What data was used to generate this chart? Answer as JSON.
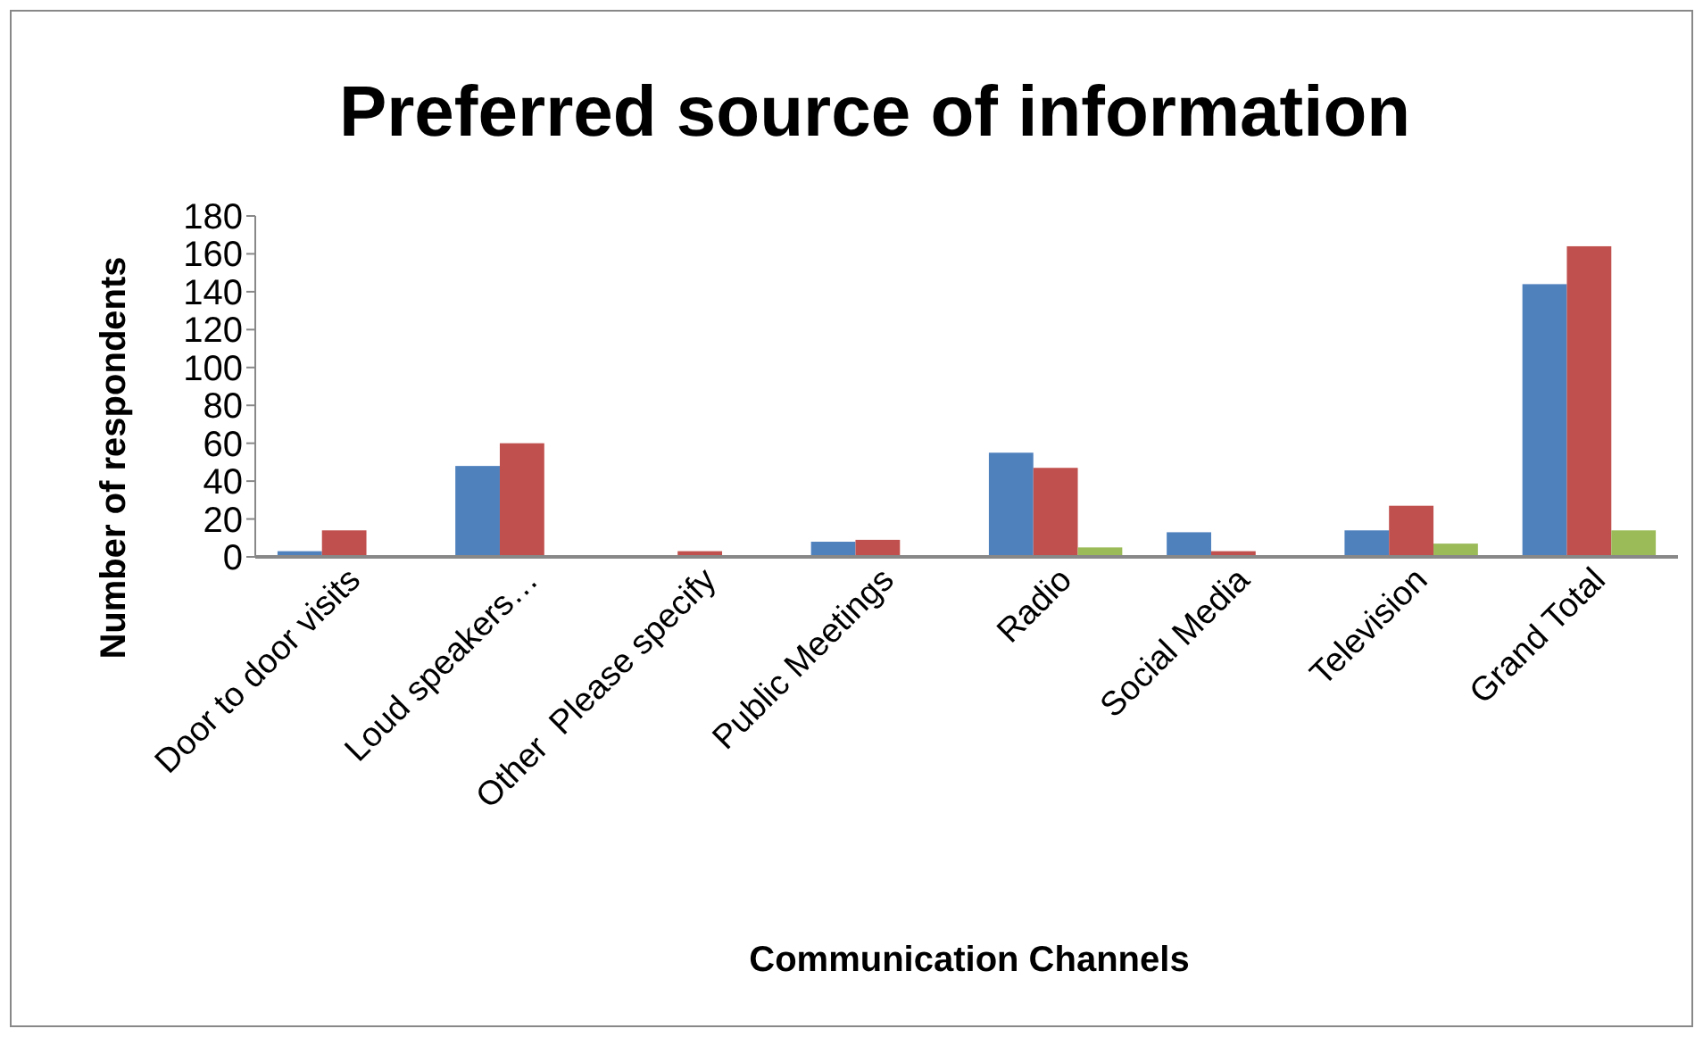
{
  "chart_data": {
    "type": "bar",
    "title": "Preferred source of information",
    "xlabel": "Communication Channels",
    "ylabel": "Number of respondents",
    "categories": [
      "Door to door visits",
      "Loud speakers…",
      "Other  Please specify",
      "Public Meetings",
      "Radio",
      "Social Media",
      "Television",
      "Grand Total"
    ],
    "series": [
      {
        "color": "#4f81bd",
        "values": [
          3,
          48,
          0,
          8,
          55,
          13,
          14,
          144
        ]
      },
      {
        "color": "#c0504d",
        "values": [
          14,
          60,
          3,
          9,
          47,
          3,
          27,
          164
        ]
      },
      {
        "color": "#9bbb59",
        "values": [
          0,
          0,
          0,
          0,
          5,
          0,
          7,
          14
        ]
      }
    ],
    "ylim": [
      0,
      180
    ],
    "yticks": [
      0,
      20,
      40,
      60,
      80,
      100,
      120,
      140,
      160,
      180
    ],
    "grid": false
  }
}
